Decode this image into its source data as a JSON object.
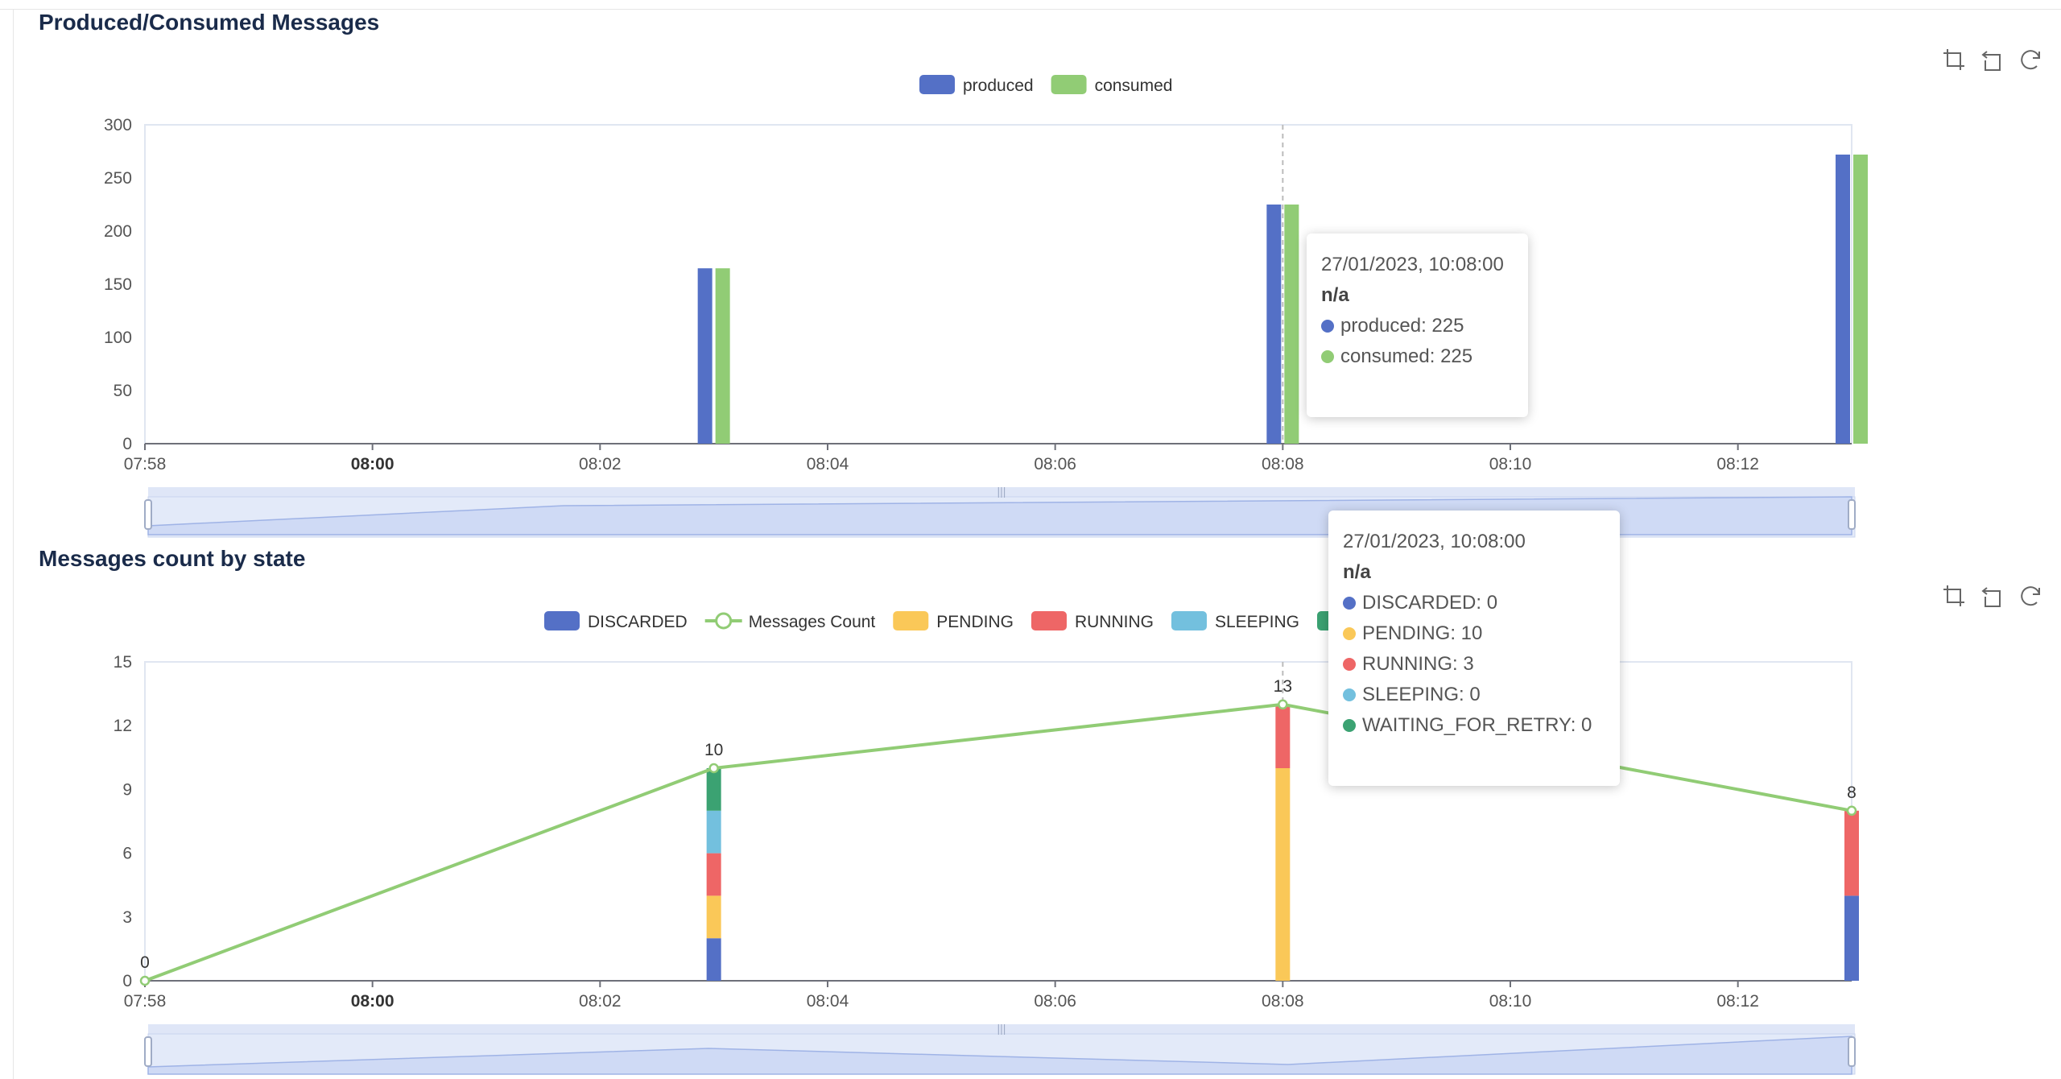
{
  "colors": {
    "produced": "#5470c6",
    "consumed": "#91cc75",
    "discarded": "#5470c6",
    "messages_count": "#91cc75",
    "pending": "#fac858",
    "running": "#ee6666",
    "sleeping": "#73c0de",
    "waiting_for_retry": "#3ba272",
    "title": "#1a2b4a"
  },
  "toolbox": {
    "icons": [
      "zoom-icon",
      "zoom-reset-icon",
      "restore-icon"
    ]
  },
  "chart1": {
    "title": "Produced/Consumed Messages",
    "tooltip": {
      "date": "27/01/2023, 10:08:00",
      "subtitle": "n/a",
      "rows": [
        {
          "label": "produced: 225",
          "color_key": "produced"
        },
        {
          "label": "consumed: 225",
          "color_key": "consumed"
        }
      ]
    }
  },
  "chart2": {
    "title": "Messages count by state",
    "tooltip": {
      "date": "27/01/2023, 10:08:00",
      "subtitle": "n/a",
      "rows": [
        {
          "label": "DISCARDED: 0",
          "color_key": "discarded"
        },
        {
          "label": "PENDING: 10",
          "color_key": "pending"
        },
        {
          "label": "RUNNING: 3",
          "color_key": "running"
        },
        {
          "label": "SLEEPING: 0",
          "color_key": "sleeping"
        },
        {
          "label": "WAITING_FOR_RETRY: 0",
          "color_key": "waiting_for_retry"
        }
      ]
    }
  },
  "chart_data": [
    {
      "type": "bar",
      "title": "Produced/Consumed Messages",
      "x_ticks": [
        "07:58",
        "08:00",
        "08:02",
        "08:04",
        "08:06",
        "08:08",
        "08:10",
        "08:12"
      ],
      "x_tick_bold": [
        "08:00"
      ],
      "x_range": [
        "07:58",
        "08:13"
      ],
      "y_ticks": [
        0,
        50,
        100,
        150,
        200,
        250,
        300
      ],
      "ylim": [
        0,
        300
      ],
      "legend_position": "top-center",
      "grid": false,
      "x": [
        "08:03",
        "08:08",
        "08:13"
      ],
      "series": [
        {
          "name": "produced",
          "color": "#5470c6",
          "values": [
            165,
            225,
            272
          ]
        },
        {
          "name": "consumed",
          "color": "#91cc75",
          "values": [
            165,
            225,
            272
          ]
        }
      ]
    },
    {
      "type": "bar",
      "title": "Messages count by state",
      "x_ticks": [
        "07:58",
        "08:00",
        "08:02",
        "08:04",
        "08:06",
        "08:08",
        "08:10",
        "08:12"
      ],
      "x_tick_bold": [
        "08:00"
      ],
      "x_range": [
        "07:58",
        "08:13"
      ],
      "y_ticks": [
        0,
        3,
        6,
        9,
        12,
        15
      ],
      "ylim": [
        0,
        15
      ],
      "legend_position": "top-center",
      "grid": false,
      "stacked": true,
      "x": [
        "08:03",
        "08:08",
        "08:13"
      ],
      "series": [
        {
          "name": "DISCARDED",
          "color": "#5470c6",
          "values": [
            2,
            0,
            4
          ]
        },
        {
          "name": "PENDING",
          "color": "#fac858",
          "values": [
            2,
            10,
            0
          ]
        },
        {
          "name": "RUNNING",
          "color": "#ee6666",
          "values": [
            2,
            3,
            4
          ]
        },
        {
          "name": "SLEEPING",
          "color": "#73c0de",
          "values": [
            2,
            0,
            0
          ]
        },
        {
          "name": "WAITING_FOR_RETRY",
          "color": "#3ba272",
          "values": [
            2,
            0,
            0
          ]
        }
      ],
      "line_series": {
        "name": "Messages Count",
        "color": "#91cc75",
        "x": [
          "07:58",
          "08:03",
          "08:08",
          "08:13"
        ],
        "values": [
          0,
          10,
          13,
          8
        ],
        "labels": [
          "0",
          "10",
          "13",
          "8"
        ]
      },
      "legend": [
        "DISCARDED",
        "Messages Count",
        "PENDING",
        "RUNNING",
        "SLEEPING",
        "WAITING_FOR_RETRY"
      ]
    }
  ]
}
